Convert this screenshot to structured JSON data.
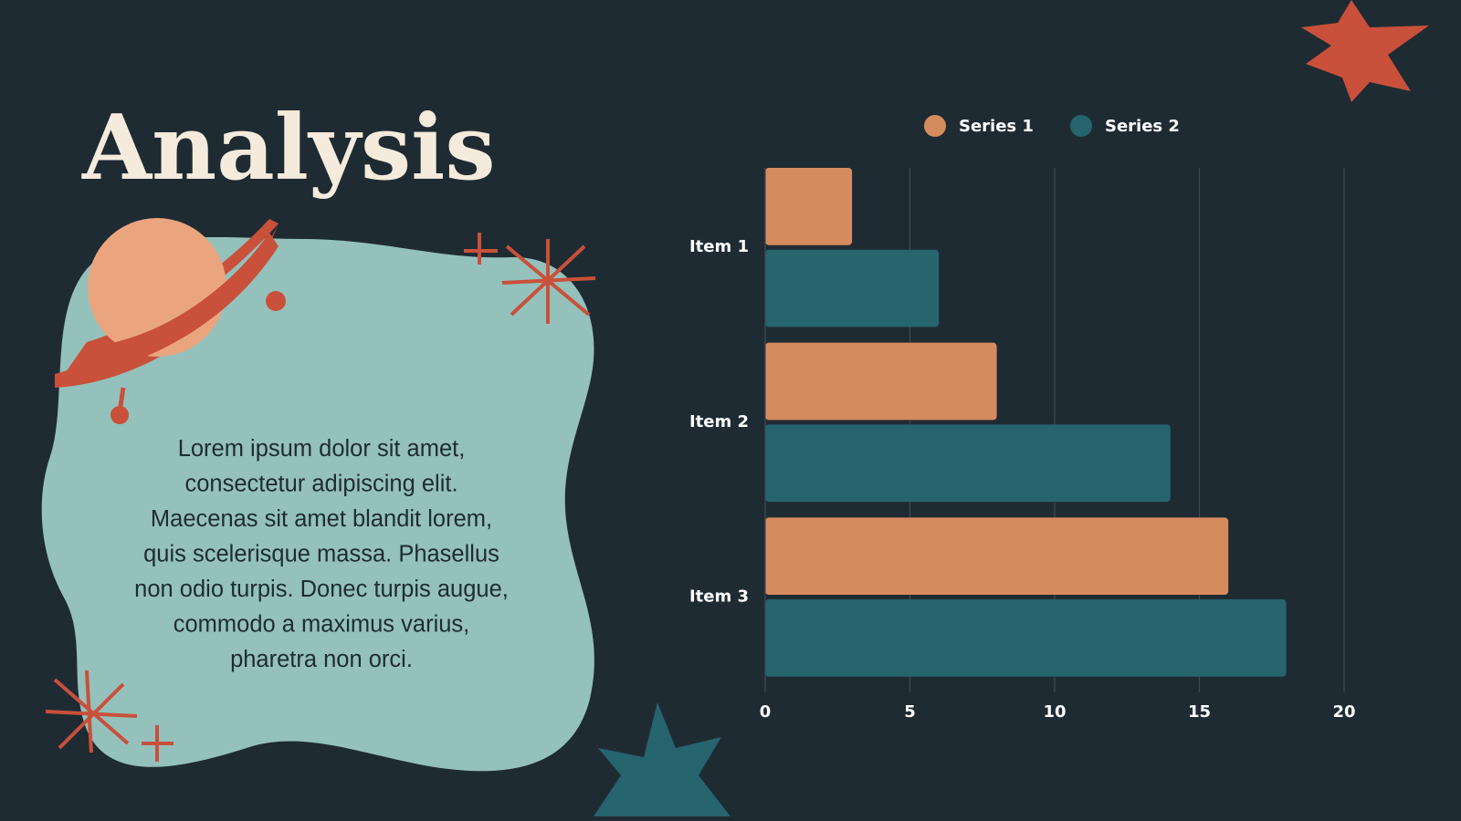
{
  "title": "Analysis",
  "body_lines": [
    "Lorem ipsum dolor sit amet,",
    "consectetur adipiscing elit.",
    "Maecenas sit amet blandit lorem,",
    "quis scelerisque massa. Phasellus",
    "non odio turpis. Donec turpis augue,",
    "commodo a maximus varius,",
    "pharetra non orci."
  ],
  "chart_data": {
    "type": "bar",
    "horizontal": true,
    "categories": [
      "Item 1",
      "Item 2",
      "Item 3"
    ],
    "series": [
      {
        "name": "Series 1",
        "color": "#d68b5e",
        "values": [
          3,
          8,
          16
        ]
      },
      {
        "name": "Series 2",
        "color": "#26646e",
        "values": [
          6,
          14,
          18
        ]
      }
    ],
    "xlim": [
      0,
      20
    ],
    "xticks": [
      0,
      5,
      10,
      15,
      20
    ],
    "grid": true,
    "legend": "top"
  }
}
